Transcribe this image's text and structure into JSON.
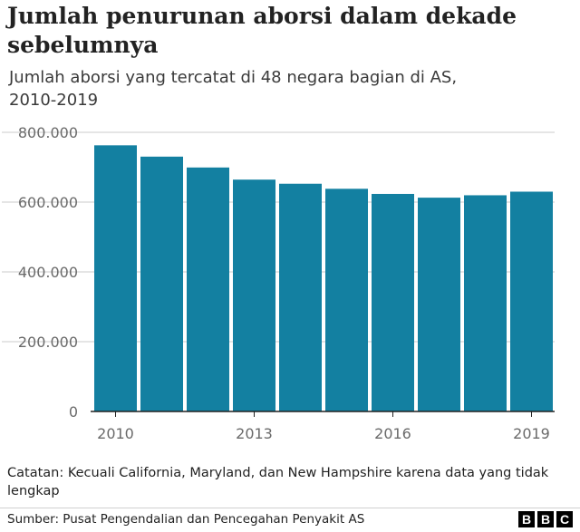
{
  "header": {
    "title": "Jumlah penurunan aborsi dalam dekade sebelumnya",
    "subtitle": "Jumlah aborsi yang tercatat di 48 negara bagian di AS, 2010-2019"
  },
  "note": "Catatan: Kecuali California, Maryland, dan New Hampshire karena data yang tidak lengkap",
  "footer": {
    "source": "Sumber: Pusat Pengendalian dan Pencegahan Penyakit AS",
    "logo_letters": [
      "B",
      "B",
      "C"
    ]
  },
  "colors": {
    "bar": "#1380A1",
    "grid": "#cbcbcb",
    "axis": "#222222",
    "tick_text": "#6a6a6a"
  },
  "chart_data": {
    "type": "bar",
    "title": "Jumlah penurunan aborsi dalam dekade sebelumnya",
    "xlabel": "",
    "ylabel": "",
    "categories": [
      "2010",
      "2011",
      "2012",
      "2013",
      "2014",
      "2015",
      "2016",
      "2017",
      "2018",
      "2019"
    ],
    "values": [
      762755,
      730322,
      699202,
      664435,
      652639,
      638169,
      623471,
      612719,
      619591,
      629898
    ],
    "ylim": [
      0,
      800000
    ],
    "yticks": [
      0,
      200000,
      400000,
      600000,
      800000
    ],
    "ytick_labels": [
      "0",
      "200.000",
      "400.000",
      "600.000",
      "800.000"
    ],
    "xtick_labels": [
      "2010",
      "2013",
      "2016",
      "2019"
    ],
    "grid": true
  }
}
